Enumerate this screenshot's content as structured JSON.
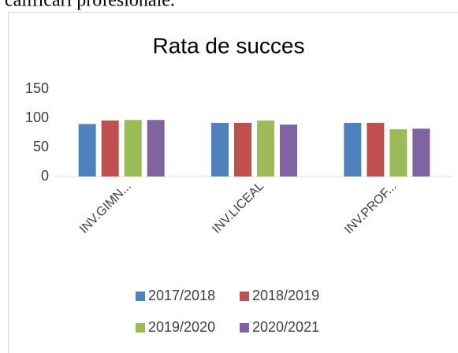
{
  "page_text": "calificări profesionale.",
  "chart_data": {
    "type": "bar",
    "title": "Rata de succes",
    "categories": [
      "INV.GIMN...",
      "INV.LICEAL",
      "INV.PROF..."
    ],
    "series": [
      {
        "name": "2017/2018",
        "color": "#4f81bd",
        "values": [
          90,
          92,
          92
        ]
      },
      {
        "name": "2018/2019",
        "color": "#c0504d",
        "values": [
          96,
          92,
          92
        ]
      },
      {
        "name": "2019/2020",
        "color": "#9bbb59",
        "values": [
          97,
          96,
          81
        ]
      },
      {
        "name": "2020/2021",
        "color": "#8064a2",
        "values": [
          97,
          89,
          82
        ]
      }
    ],
    "ylim": [
      0,
      150
    ],
    "yticks": [
      0,
      50,
      100,
      150
    ],
    "grid": false,
    "legend": "bottom"
  }
}
